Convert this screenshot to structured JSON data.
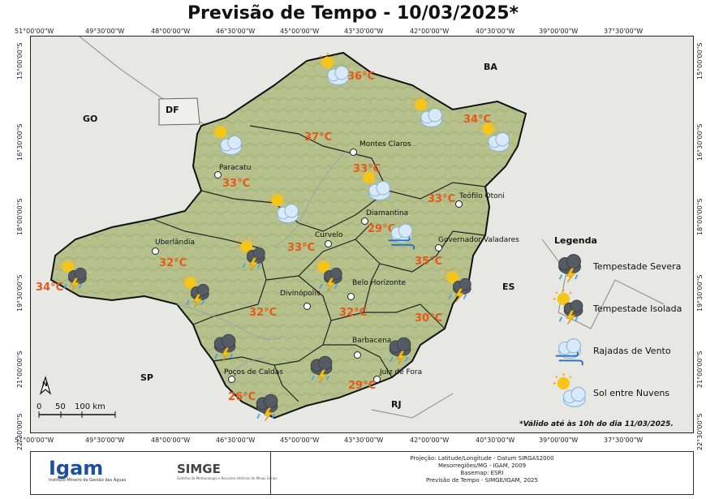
{
  "title": "Previsão de Tempo - 10/03/2025*",
  "lon_labels": [
    "51°00'00\"W",
    "49°30'00\"W",
    "48°00'00\"W",
    "46°30'00\"W",
    "45°00'00\"W",
    "43°30'00\"W",
    "42°00'00\"W",
    "40°30'00\"W",
    "39°00'00\"W",
    "37°30'00\"W"
  ],
  "lat_labels": [
    "15°00'00\"S",
    "16°30'00\"S",
    "18°00'00\"S",
    "19°30'00\"S",
    "21°00'00\"S",
    "22°30'00\"S"
  ],
  "states": {
    "go": "GO",
    "df": "DF",
    "ba": "BA",
    "es": "ES",
    "sp": "SP",
    "rj": "RJ"
  },
  "cities": [
    {
      "name": "Montes Claros"
    },
    {
      "name": "Paracatu"
    },
    {
      "name": "Teófilo Otoni"
    },
    {
      "name": "Diamantina"
    },
    {
      "name": "Uberlândia"
    },
    {
      "name": "Curvelo"
    },
    {
      "name": "Governador Valadares"
    },
    {
      "name": "Belo Horizonte"
    },
    {
      "name": "Divinópolis"
    },
    {
      "name": "Barbacena"
    },
    {
      "name": "Poços de Caldas"
    },
    {
      "name": "Juiz de Fora"
    }
  ],
  "temps": [
    "36°C",
    "37°C",
    "34°C",
    "33°C",
    "33°C",
    "33°C",
    "29°C",
    "33°C",
    "32°C",
    "35°C",
    "34°C",
    "32°C",
    "32°C",
    "30°C",
    "26°C",
    "29°C"
  ],
  "legend": {
    "title": "Legenda",
    "items": [
      {
        "label": "Tempestade Severa",
        "icon": "storm-severe-icon"
      },
      {
        "label": "Tempestade Isolada",
        "icon": "storm-isolated-icon"
      },
      {
        "label": "Rajadas de Vento",
        "icon": "wind-gust-icon"
      },
      {
        "label": "Sol entre Nuvens",
        "icon": "sun-clouds-icon"
      }
    ]
  },
  "scale": {
    "labels": [
      "0",
      "50",
      "100 km"
    ]
  },
  "north_arrow": "N",
  "validity": "*Válido até às 10h do dia 11/03/2025.",
  "footer": {
    "lines": [
      "Projeção: Latitude/Longitude - Datum SIRGAS2000",
      "Mesorregiões/MG - IGAM, 2009",
      "Basemap: ESRI",
      "Previsão de Tempo - SIMGE/IGAM, 2025"
    ],
    "igam": "Igam",
    "igam_sub": "Instituto Mineiro de Gestão das Águas",
    "simge": "SIMGE",
    "simge_sub": "Sistema de Meteorologia e Recursos Hídricos de Minas Gerais"
  },
  "colors": {
    "temp": "#e35a1a",
    "map_bg": "#e9e9e6",
    "state_fill": "#b5bf8a",
    "border": "#111111"
  }
}
